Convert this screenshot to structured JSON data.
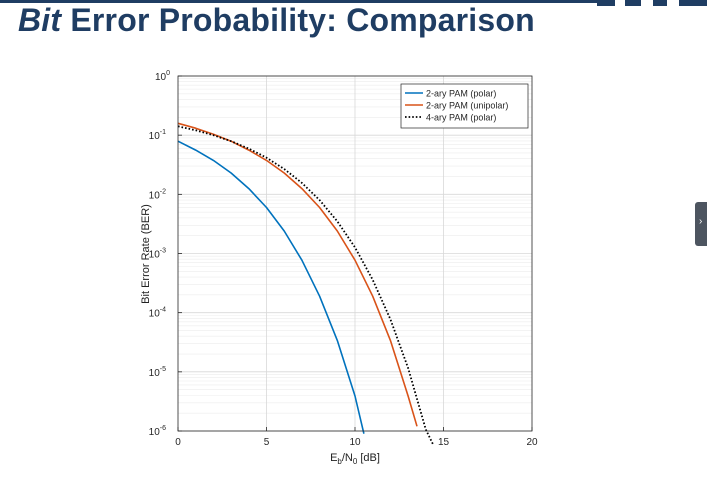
{
  "slide": {
    "title_italic": "Bit",
    "title_rest": " Error Probability: Comparison",
    "accent": "#1f3d63"
  },
  "chart_data": {
    "type": "line",
    "title": "",
    "xlabel": "Eb/N0 [dB]",
    "xlabel_parts": {
      "main": "E",
      "sub1": "b",
      "mid": "/N",
      "sub2": "0",
      "tail": " [dB]"
    },
    "ylabel": "Bit Error Rate (BER)",
    "xlim": [
      0,
      20
    ],
    "ylim": [
      1e-06,
      1
    ],
    "yscale": "log",
    "grid": true,
    "legend_position": "top-right",
    "x_ticks": [
      0,
      5,
      10,
      15,
      20
    ],
    "y_ticks": [
      {
        "value": 1,
        "base": "10",
        "exp": "0"
      },
      {
        "value": 0.1,
        "base": "10",
        "exp": "-1"
      },
      {
        "value": 0.01,
        "base": "10",
        "exp": "-2"
      },
      {
        "value": 0.001,
        "base": "10",
        "exp": "-3"
      },
      {
        "value": 0.0001,
        "base": "10",
        "exp": "-4"
      },
      {
        "value": 1e-05,
        "base": "10",
        "exp": "-5"
      },
      {
        "value": 1e-06,
        "base": "10",
        "exp": "-6"
      }
    ],
    "series": [
      {
        "name": "2-ary PAM (polar)",
        "color": "#0072bd",
        "style": "solid",
        "x": [
          0,
          1,
          2,
          3,
          4,
          5,
          6,
          7,
          8,
          9,
          10,
          10.5
        ],
        "y": [
          0.079,
          0.056,
          0.0375,
          0.0229,
          0.0125,
          0.006,
          0.0024,
          0.00077,
          0.00019,
          3.4e-05,
          3.9e-06,
          9e-07
        ]
      },
      {
        "name": "2-ary PAM (unipolar)",
        "color": "#d95319",
        "style": "solid",
        "x": [
          0,
          1,
          2,
          3,
          4,
          5,
          6,
          7,
          8,
          9,
          10,
          11,
          12,
          13,
          13.5
        ],
        "y": [
          0.159,
          0.131,
          0.104,
          0.079,
          0.056,
          0.0375,
          0.0229,
          0.0125,
          0.006,
          0.0024,
          0.00077,
          0.00019,
          3.4e-05,
          3.9e-06,
          1.2e-06
        ]
      },
      {
        "name": "4-ary PAM (polar)",
        "color": "#000000",
        "style": "dotted",
        "x": [
          0,
          1,
          2,
          3,
          4,
          5,
          6,
          7,
          8,
          9,
          10,
          11,
          12,
          13,
          14,
          14.4
        ],
        "y": [
          0.141,
          0.121,
          0.0999,
          0.0792,
          0.0593,
          0.0416,
          0.0268,
          0.0156,
          0.008,
          0.0035,
          0.00127,
          0.00036,
          7.73e-05,
          1.16e-05,
          1.06e-06,
          6e-07
        ]
      }
    ]
  }
}
